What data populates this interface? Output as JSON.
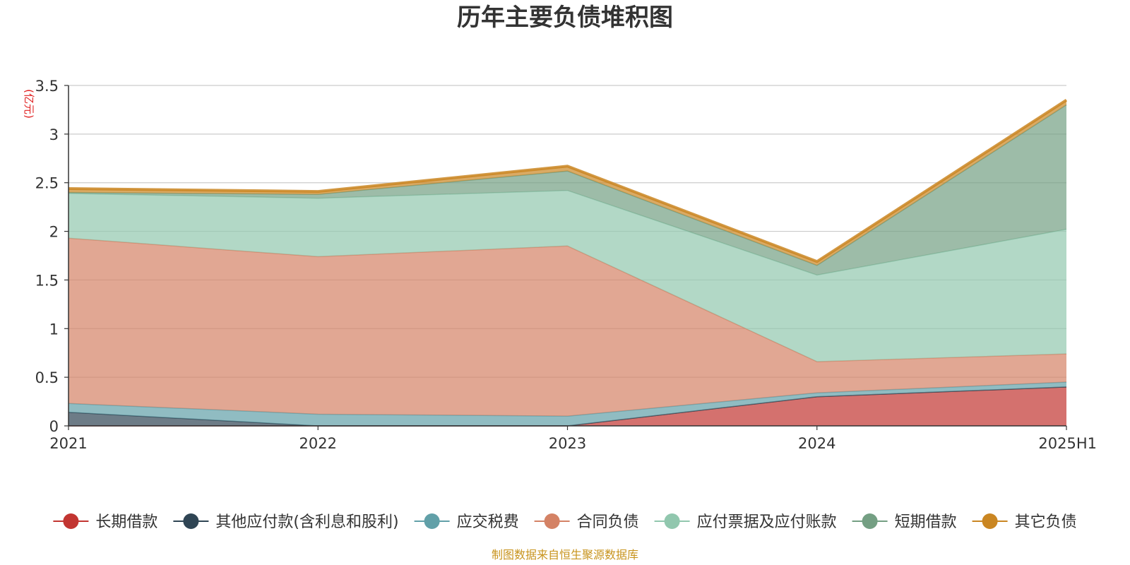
{
  "chart_data": {
    "type": "area",
    "stacked": true,
    "title": "历年主要负债堆积图",
    "y_unit": "(亿元)",
    "source": "制图数据来自恒生聚源数据库",
    "categories": [
      "2021",
      "2022",
      "2023",
      "2024",
      "2025H1"
    ],
    "ylim": [
      0,
      3.5
    ],
    "yticks": [
      "0",
      "0.5",
      "1",
      "1.5",
      "2",
      "2.5",
      "3",
      "3.5"
    ],
    "grid": true,
    "legend_position": "bottom",
    "series": [
      {
        "name": "长期借款",
        "color": "#c23531",
        "values": [
          0,
          0,
          0,
          0.3,
          0.4
        ]
      },
      {
        "name": "其他应付款(含利息和股利)",
        "color": "#2f4554",
        "values": [
          0.14,
          0,
          0,
          0,
          0
        ]
      },
      {
        "name": "应交税费",
        "color": "#61a0a8",
        "values": [
          0.09,
          0.12,
          0.1,
          0.04,
          0.05
        ]
      },
      {
        "name": "合同负债",
        "color": "#d48265",
        "values": [
          1.7,
          1.62,
          1.75,
          0.32,
          0.29
        ]
      },
      {
        "name": "应付票据及应付账款",
        "color": "#91c7ae",
        "values": [
          0.46,
          0.6,
          0.57,
          0.89,
          1.28
        ]
      },
      {
        "name": "短期借款",
        "color": "#749f83",
        "values": [
          0.01,
          0.04,
          0.2,
          0.1,
          1.28
        ]
      },
      {
        "name": "其它负债",
        "color": "#ca8622",
        "values": [
          0.04,
          0.03,
          0.05,
          0.04,
          0.05
        ]
      }
    ]
  }
}
